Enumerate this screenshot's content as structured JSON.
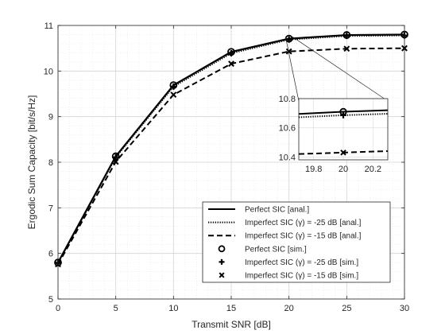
{
  "chart_data": {
    "type": "line",
    "title": "",
    "xlabel": "Transmit SNR [dB]",
    "ylabel": "Ergodic Sum Capacity [bit/s/Hz]",
    "x": [
      0,
      5,
      10,
      15,
      20,
      25,
      30
    ],
    "xlim": [
      0,
      30
    ],
    "ylim": [
      5,
      11
    ],
    "xticks": [
      "0",
      "5",
      "10",
      "15",
      "20",
      "25",
      "30"
    ],
    "yticks": [
      "5",
      "6",
      "7",
      "8",
      "9",
      "10",
      "11"
    ],
    "grid": true,
    "legend_position": "bottom-right",
    "series": [
      {
        "name": "Perfect SIC [anal.]",
        "style": "solid",
        "values": [
          5.8,
          8.13,
          9.69,
          10.42,
          10.71,
          10.79,
          10.8
        ]
      },
      {
        "name": "Imperfect SIC (γ) = -25 dB [anal.]",
        "style": "dotted",
        "values": [
          5.79,
          8.11,
          9.66,
          10.39,
          10.69,
          10.77,
          10.78
        ]
      },
      {
        "name": "Imperfect SIC (γ) = -15 dB [anal.]",
        "style": "dashed",
        "values": [
          5.76,
          8.01,
          9.48,
          10.16,
          10.43,
          10.49,
          10.5
        ]
      },
      {
        "name": "Perfect SIC [sim.]",
        "marker": "circle",
        "values": [
          5.8,
          8.13,
          9.69,
          10.42,
          10.71,
          10.79,
          10.8
        ]
      },
      {
        "name": "Imperfect SIC (γ) = -25 dB [sim.]",
        "marker": "plus",
        "values": [
          5.79,
          8.11,
          9.66,
          10.39,
          10.69,
          10.77,
          10.78
        ]
      },
      {
        "name": "Imperfect SIC (γ) = -15 dB [sim.]",
        "marker": "x",
        "values": [
          5.76,
          8.01,
          9.48,
          10.16,
          10.43,
          10.49,
          10.5
        ]
      }
    ],
    "inset": {
      "xlim": [
        19.7,
        20.3
      ],
      "ylim": [
        10.38,
        10.8
      ],
      "xticks": [
        "19.8",
        "20",
        "20.2"
      ],
      "yticks": [
        "10.4",
        "10.6",
        "10.8"
      ],
      "x": [
        19.7,
        20,
        20.3
      ],
      "series": [
        {
          "style": "solid",
          "values": [
            10.695,
            10.71,
            10.72
          ]
        },
        {
          "style": "dotted",
          "values": [
            10.672,
            10.686,
            10.696
          ]
        },
        {
          "style": "dashed",
          "values": [
            10.42,
            10.43,
            10.44
          ]
        }
      ],
      "markers": [
        {
          "marker": "circle",
          "x": 20,
          "y": 10.71
        },
        {
          "marker": "plus",
          "x": 20,
          "y": 10.686
        },
        {
          "marker": "x",
          "x": 20,
          "y": 10.43
        }
      ]
    }
  }
}
